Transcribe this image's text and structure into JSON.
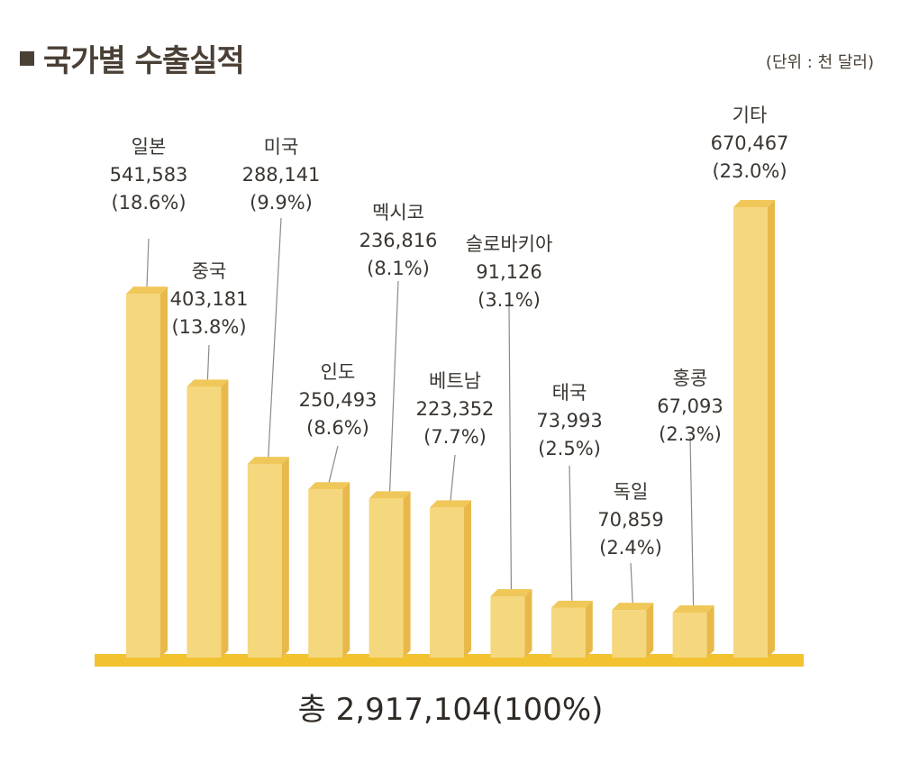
{
  "header": {
    "title": "국가별 수출실적",
    "unit": "(단위 : 천 달러)"
  },
  "footer": {
    "total": "총 2,917,104(100%)"
  },
  "colors": {
    "bar_front": "#f5d77e",
    "bar_side": "#e8b94a",
    "bar_top": "#f0c85a",
    "baseline": "#f2c230",
    "leader": "#8a8a8a"
  },
  "chart_data": {
    "type": "bar",
    "title": "국가별 수출실적",
    "unit": "(단위 : 천 달러)",
    "categories": [
      "일본",
      "중국",
      "미국",
      "인도",
      "멕시코",
      "베트남",
      "슬로바키아",
      "태국",
      "독일",
      "홍콩",
      "기타"
    ],
    "values": [
      541583,
      403181,
      288141,
      250493,
      236816,
      223352,
      91126,
      73993,
      70859,
      67093,
      670467
    ],
    "value_labels": [
      "541,583",
      "403,181",
      "288,141",
      "250,493",
      "236,816",
      "223,352",
      "91,126",
      "73,993",
      "70,859",
      "67,093",
      "670,467"
    ],
    "percent_labels": [
      "(18.6%)",
      "(13.8%)",
      "(9.9%)",
      "(8.6%)",
      "(8.1%)",
      "(7.7%)",
      "(3.1%)",
      "(2.5%)",
      "(2.4%)",
      "(2.3%)",
      "(23.0%)"
    ],
    "total_label": "총 2,917,104(100%)",
    "grid": false,
    "legend": "none"
  }
}
